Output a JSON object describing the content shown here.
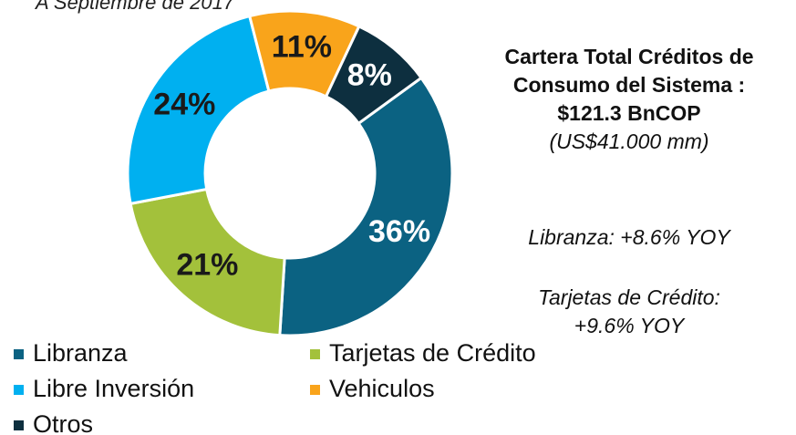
{
  "chart_data": {
    "type": "donut",
    "title": "A Septiembre de 2017",
    "categories": [
      "Libranza",
      "Tarjetas de Crédito",
      "Libre Inversión",
      "Vehiculos",
      "Otros"
    ],
    "values": [
      36,
      21,
      24,
      11,
      8
    ],
    "value_labels": [
      "36%",
      "21%",
      "24%",
      "11%",
      "8%"
    ],
    "colors": [
      "#0b6282",
      "#a3c13b",
      "#00b0f0",
      "#f9a41b",
      "#0d2f3f"
    ],
    "label_colors": [
      "#ffffff",
      "#1a1a1a",
      "#1a1a1a",
      "#1a1a1a",
      "#ffffff"
    ],
    "side_title": [
      "Cartera Total Créditos de",
      "Consumo del Sistema :",
      "$121.3 BnCOP"
    ],
    "side_subtitle": "(US$41.000 mm)",
    "annotations": [
      [
        "Libranza: +8.6% YOY"
      ],
      [
        "Tarjetas de Crédito:",
        "+9.6% YOY"
      ]
    ],
    "legend": "bottom"
  }
}
